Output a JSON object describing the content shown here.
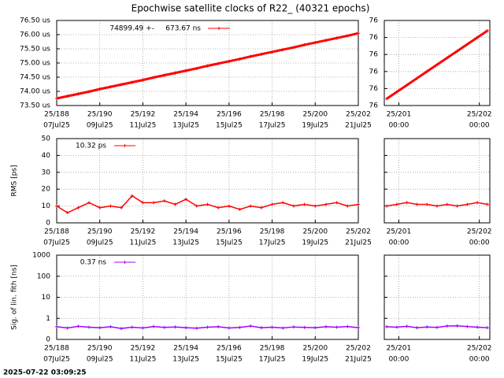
{
  "timestamp": "2025-07-22 03:09:25",
  "chart_data": [
    {
      "type": "line",
      "title": "Epochwise satellite clocks of R22_ (40321 epochs)",
      "xlim": [
        188,
        202
      ],
      "xticks": [
        {
          "value": 188,
          "label": "25/188"
        },
        {
          "value": 190,
          "label": "25/190"
        },
        {
          "value": 192,
          "label": "25/192"
        },
        {
          "value": 194,
          "label": "25/194"
        },
        {
          "value": 196,
          "label": "25/196"
        },
        {
          "value": 198,
          "label": "25/198"
        },
        {
          "value": 200,
          "label": "25/200"
        },
        {
          "value": 202,
          "label": "25/202"
        }
      ],
      "xtick_sublabels": [
        "07Jul25",
        "09Jul25",
        "11Jul25",
        "13Jul25",
        "15Jul25",
        "17Jul25",
        "19Jul25",
        "21Jul25"
      ],
      "ylim": [
        73.5,
        76.5
      ],
      "yticks": [
        {
          "value": 73.5,
          "label": "73.50 us"
        },
        {
          "value": 74,
          "label": "74.00 us"
        },
        {
          "value": 74.5,
          "label": "74.50 us"
        },
        {
          "value": 75,
          "label": "75.00 us"
        },
        {
          "value": 75.5,
          "label": "75.50 us"
        },
        {
          "value": 76,
          "label": "76.00 us"
        },
        {
          "value": 76.5,
          "label": "76.50 us"
        }
      ],
      "show_ytick_labels": true,
      "grid": true,
      "log": false,
      "x": [
        188,
        188.5,
        189,
        189.5,
        190,
        190.5,
        191,
        191.5,
        192,
        192.5,
        193,
        193.5,
        194,
        194.5,
        195,
        195.5,
        196,
        196.5,
        197,
        197.5,
        198,
        198.5,
        199,
        199.5,
        200,
        200.5,
        201,
        201.5,
        202
      ],
      "series": [
        {
          "name": "74899.49 +-     673.67 ns",
          "color": "#ff0000",
          "values": [
            73.75,
            73.83,
            73.91,
            73.99,
            74.08,
            74.16,
            74.24,
            74.32,
            74.4,
            74.49,
            74.57,
            74.65,
            74.73,
            74.81,
            74.9,
            74.98,
            75.06,
            75.14,
            75.23,
            75.31,
            75.39,
            75.47,
            75.55,
            75.64,
            75.72,
            75.8,
            75.88,
            75.96,
            76.05
          ]
        }
      ]
    },
    {
      "type": "line",
      "xlim": [
        200.82,
        202.13
      ],
      "xticks": [
        {
          "value": 201,
          "label": "25/201"
        },
        {
          "value": 202,
          "label": "25/202"
        }
      ],
      "xtick_sublabels": [
        "00:00",
        "00:00"
      ],
      "ylim": [
        75.84,
        76.09
      ],
      "yticks": [
        {
          "value": 75.84,
          "label": "76"
        },
        {
          "value": 75.89,
          "label": "76"
        },
        {
          "value": 75.94,
          "label": "76"
        },
        {
          "value": 75.99,
          "label": "76"
        },
        {
          "value": 76.04,
          "label": "76"
        },
        {
          "value": 76.09,
          "label": "76"
        }
      ],
      "show_ytick_labels": true,
      "grid": true,
      "log": false,
      "x": [
        200.85,
        200.975,
        201.1,
        201.225,
        201.35,
        201.475,
        201.6,
        201.725,
        201.85,
        201.975,
        202.1
      ],
      "series": [
        {
          "color": "#ff0000",
          "values": [
            75.86,
            75.88,
            75.9,
            75.92,
            75.94,
            75.96,
            75.98,
            76.0,
            76.02,
            76.04,
            76.06
          ]
        }
      ]
    },
    {
      "type": "line",
      "ylabel": "RMS [ps]",
      "xlim": [
        188,
        202
      ],
      "xticks": [
        {
          "value": 188,
          "label": "25/188"
        },
        {
          "value": 190,
          "label": "25/190"
        },
        {
          "value": 192,
          "label": "25/192"
        },
        {
          "value": 194,
          "label": "25/194"
        },
        {
          "value": 196,
          "label": "25/196"
        },
        {
          "value": 198,
          "label": "25/198"
        },
        {
          "value": 200,
          "label": "25/200"
        },
        {
          "value": 202,
          "label": "25/202"
        }
      ],
      "xtick_sublabels": [
        "07Jul25",
        "09Jul25",
        "11Jul25",
        "13Jul25",
        "15Jul25",
        "17Jul25",
        "19Jul25",
        "21Jul25"
      ],
      "ylim": [
        0,
        50
      ],
      "yticks": [
        0,
        10,
        20,
        30,
        40,
        50
      ],
      "show_ytick_labels": true,
      "grid": true,
      "log": false,
      "x": [
        188,
        188.5,
        189,
        189.5,
        190,
        190.5,
        191,
        191.5,
        192,
        192.5,
        193,
        193.5,
        194,
        194.5,
        195,
        195.5,
        196,
        196.5,
        197,
        197.5,
        198,
        198.5,
        199,
        199.5,
        200,
        200.5,
        201,
        201.5,
        202
      ],
      "series": [
        {
          "name": "10.32 ps",
          "color": "#ff0000",
          "values": [
            10,
            6,
            9,
            12,
            9,
            10,
            9,
            16,
            12,
            12,
            13,
            11,
            14,
            10,
            11,
            9,
            10,
            8,
            10,
            9,
            11,
            12,
            10,
            11,
            10,
            11,
            12,
            10,
            11
          ]
        }
      ]
    },
    {
      "type": "line",
      "xlim": [
        200.82,
        202.13
      ],
      "xticks": [
        {
          "value": 201,
          "label": "25/201"
        },
        {
          "value": 202,
          "label": "25/202"
        }
      ],
      "xtick_sublabels": [
        "00:00",
        "00:00"
      ],
      "ylim": [
        0,
        50
      ],
      "yticks": [
        0,
        10,
        20,
        30,
        40,
        50
      ],
      "show_ytick_labels": false,
      "grid": true,
      "log": false,
      "x": [
        200.85,
        200.975,
        201.1,
        201.225,
        201.35,
        201.475,
        201.6,
        201.725,
        201.85,
        201.975,
        202.1
      ],
      "series": [
        {
          "color": "#ff0000",
          "values": [
            10,
            11,
            12,
            11,
            11,
            10,
            11,
            10,
            11,
            12,
            11
          ]
        }
      ]
    },
    {
      "type": "line",
      "ylabel": "Sig. of lin. fith [ns]",
      "xlim": [
        188,
        202
      ],
      "xticks": [
        {
          "value": 188,
          "label": "25/188"
        },
        {
          "value": 190,
          "label": "25/190"
        },
        {
          "value": 192,
          "label": "25/192"
        },
        {
          "value": 194,
          "label": "25/194"
        },
        {
          "value": 196,
          "label": "25/196"
        },
        {
          "value": 198,
          "label": "25/198"
        },
        {
          "value": 200,
          "label": "25/200"
        },
        {
          "value": 202,
          "label": "25/202"
        }
      ],
      "xtick_sublabels": [
        "07Jul25",
        "09Jul25",
        "11Jul25",
        "13Jul25",
        "15Jul25",
        "17Jul25",
        "19Jul25",
        "21Jul25"
      ],
      "ylim": [
        0.1,
        1000
      ],
      "yticks": [
        {
          "value": 0.1,
          "label": "0"
        },
        1,
        10,
        100,
        1000
      ],
      "show_ytick_labels": true,
      "grid": true,
      "log": true,
      "x": [
        188,
        188.5,
        189,
        189.5,
        190,
        190.5,
        191,
        191.5,
        192,
        192.5,
        193,
        193.5,
        194,
        194.5,
        195,
        195.5,
        196,
        196.5,
        197,
        197.5,
        198,
        198.5,
        199,
        199.5,
        200,
        200.5,
        201,
        201.5,
        202
      ],
      "series": [
        {
          "name": "0.37 ns",
          "color": "#a000ff",
          "values": [
            0.4,
            0.35,
            0.42,
            0.38,
            0.36,
            0.4,
            0.33,
            0.38,
            0.35,
            0.41,
            0.37,
            0.39,
            0.36,
            0.34,
            0.38,
            0.4,
            0.35,
            0.37,
            0.43,
            0.36,
            0.38,
            0.35,
            0.39,
            0.37,
            0.36,
            0.4,
            0.38,
            0.41,
            0.36
          ]
        }
      ]
    },
    {
      "type": "line",
      "xlim": [
        200.82,
        202.13
      ],
      "xticks": [
        {
          "value": 201,
          "label": "25/201"
        },
        {
          "value": 202,
          "label": "25/202"
        }
      ],
      "xtick_sublabels": [
        "00:00",
        "00:00"
      ],
      "ylim": [
        0.1,
        1000
      ],
      "yticks": [
        {
          "value": 0.1,
          "label": "0"
        },
        1,
        10,
        100,
        1000
      ],
      "show_ytick_labels": false,
      "grid": true,
      "log": true,
      "x": [
        200.85,
        200.975,
        201.1,
        201.225,
        201.35,
        201.475,
        201.6,
        201.725,
        201.85,
        201.975,
        202.1
      ],
      "series": [
        {
          "color": "#a000ff",
          "values": [
            0.4,
            0.38,
            0.42,
            0.36,
            0.39,
            0.37,
            0.43,
            0.44,
            0.41,
            0.38,
            0.36
          ]
        }
      ]
    }
  ]
}
